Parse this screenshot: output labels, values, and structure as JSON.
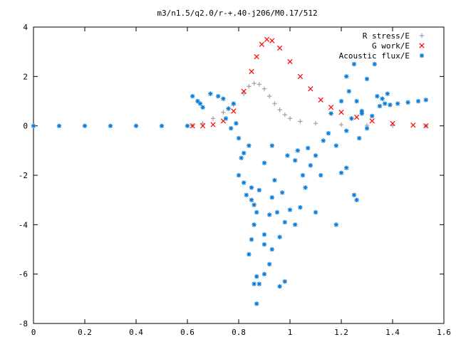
{
  "chart_data": {
    "type": "scatter",
    "title": "m3/n1.5/q2.0/r-+.40-j206/M0.17/512",
    "xlabel": "",
    "ylabel": "",
    "xlim": [
      0,
      1.6
    ],
    "ylim": [
      -8,
      4
    ],
    "x_ticks": [
      0,
      0.2,
      0.4,
      0.6,
      0.8,
      1,
      1.2,
      1.4,
      1.6
    ],
    "x_tick_labels": [
      "0",
      "0.2",
      "0.4",
      "0.6",
      "0.8",
      "1",
      "1.2",
      "1.4",
      "1.6"
    ],
    "y_ticks": [
      -8,
      -6,
      -4,
      -2,
      0,
      2,
      4
    ],
    "y_tick_labels": [
      "-8",
      "-6",
      "-4",
      "-2",
      "0",
      "2",
      "4"
    ],
    "grid": false,
    "legend_position": "top-right",
    "series": [
      {
        "name": "R stress/E",
        "marker": "plus",
        "color": "#a0a0a0",
        "points": [
          [
            0.62,
            0.01
          ],
          [
            0.66,
            0.1
          ],
          [
            0.7,
            0.3
          ],
          [
            0.74,
            0.55
          ],
          [
            0.78,
            0.85
          ],
          [
            0.82,
            1.3
          ],
          [
            0.84,
            1.6
          ],
          [
            0.86,
            1.72
          ],
          [
            0.88,
            1.68
          ],
          [
            0.9,
            1.5
          ],
          [
            0.92,
            1.2
          ],
          [
            0.94,
            0.9
          ],
          [
            0.96,
            0.65
          ],
          [
            0.98,
            0.45
          ],
          [
            1.0,
            0.3
          ],
          [
            1.04,
            0.18
          ],
          [
            1.1,
            0.1
          ],
          [
            1.2,
            0.05
          ],
          [
            1.3,
            0.02
          ],
          [
            1.4,
            0.01
          ],
          [
            1.53,
            0.0
          ]
        ]
      },
      {
        "name": "G work/E",
        "marker": "x",
        "color": "#ff0000",
        "points": [
          [
            0.62,
            0.0
          ],
          [
            0.66,
            0.0
          ],
          [
            0.7,
            0.05
          ],
          [
            0.74,
            0.2
          ],
          [
            0.78,
            0.6
          ],
          [
            0.82,
            1.4
          ],
          [
            0.85,
            2.2
          ],
          [
            0.87,
            2.8
          ],
          [
            0.89,
            3.3
          ],
          [
            0.91,
            3.5
          ],
          [
            0.93,
            3.45
          ],
          [
            0.96,
            3.15
          ],
          [
            1.0,
            2.6
          ],
          [
            1.04,
            2.0
          ],
          [
            1.08,
            1.5
          ],
          [
            1.12,
            1.05
          ],
          [
            1.16,
            0.75
          ],
          [
            1.2,
            0.55
          ],
          [
            1.26,
            0.35
          ],
          [
            1.32,
            0.2
          ],
          [
            1.4,
            0.1
          ],
          [
            1.48,
            0.03
          ],
          [
            1.53,
            0.0
          ]
        ]
      },
      {
        "name": "Acoustic flux/E",
        "marker": "star",
        "color": "#0a7ad7",
        "points": [
          [
            0.0,
            0
          ],
          [
            0.1,
            0
          ],
          [
            0.2,
            0
          ],
          [
            0.3,
            0
          ],
          [
            0.4,
            0
          ],
          [
            0.5,
            0
          ],
          [
            0.6,
            0
          ],
          [
            0.62,
            1.2
          ],
          [
            0.64,
            1.0
          ],
          [
            0.65,
            0.9
          ],
          [
            0.66,
            0.75
          ],
          [
            0.69,
            1.3
          ],
          [
            0.72,
            1.2
          ],
          [
            0.74,
            1.1
          ],
          [
            0.76,
            0.7
          ],
          [
            0.75,
            0.3
          ],
          [
            0.78,
            0.9
          ],
          [
            0.77,
            -0.1
          ],
          [
            0.79,
            0.1
          ],
          [
            0.8,
            -0.5
          ],
          [
            0.81,
            -1.3
          ],
          [
            0.8,
            -2.0
          ],
          [
            0.82,
            -2.3
          ],
          [
            0.83,
            -2.8
          ],
          [
            0.82,
            -1.1
          ],
          [
            0.84,
            -0.8
          ],
          [
            0.85,
            -2.5
          ],
          [
            0.86,
            -3.2
          ],
          [
            0.87,
            -3.5
          ],
          [
            0.88,
            -2.6
          ],
          [
            0.85,
            -4.6
          ],
          [
            0.86,
            -4.0
          ],
          [
            0.84,
            -5.2
          ],
          [
            0.87,
            -6.1
          ],
          [
            0.88,
            -6.4
          ],
          [
            0.86,
            -6.4
          ],
          [
            0.9,
            -6.0
          ],
          [
            0.92,
            -5.6
          ],
          [
            0.93,
            -5.0
          ],
          [
            0.9,
            -4.4
          ],
          [
            0.92,
            -3.6
          ],
          [
            0.93,
            -2.9
          ],
          [
            0.95,
            -3.5
          ],
          [
            0.96,
            -4.5
          ],
          [
            0.98,
            -3.9
          ],
          [
            0.97,
            -2.7
          ],
          [
            1.0,
            -3.4
          ],
          [
            1.02,
            -4.0
          ],
          [
            1.04,
            -3.3
          ],
          [
            1.06,
            -2.5
          ],
          [
            1.02,
            -1.4
          ],
          [
            1.05,
            -2.0
          ],
          [
            1.08,
            -1.6
          ],
          [
            1.1,
            -3.5
          ],
          [
            1.12,
            -2.0
          ],
          [
            1.1,
            -1.2
          ],
          [
            1.13,
            -0.6
          ],
          [
            1.15,
            -0.3
          ],
          [
            1.16,
            0.5
          ],
          [
            1.18,
            -0.8
          ],
          [
            1.2,
            -1.9
          ],
          [
            1.22,
            -1.7
          ],
          [
            1.25,
            -2.8
          ],
          [
            1.22,
            -0.2
          ],
          [
            1.24,
            0.3
          ],
          [
            1.27,
            -0.5
          ],
          [
            1.2,
            1.0
          ],
          [
            1.23,
            1.4
          ],
          [
            1.26,
            1.0
          ],
          [
            1.28,
            0.6
          ],
          [
            1.3,
            -0.1
          ],
          [
            1.32,
            0.4
          ],
          [
            1.34,
            1.2
          ],
          [
            1.35,
            0.8
          ],
          [
            1.36,
            1.1
          ],
          [
            1.38,
            1.3
          ],
          [
            1.22,
            2.0
          ],
          [
            1.25,
            2.5
          ],
          [
            1.3,
            1.9
          ],
          [
            1.33,
            2.5
          ],
          [
            1.28,
            0.5
          ],
          [
            1.37,
            0.9
          ],
          [
            1.39,
            0.85
          ],
          [
            1.42,
            0.9
          ],
          [
            1.46,
            0.95
          ],
          [
            1.5,
            1.0
          ],
          [
            1.53,
            1.05
          ],
          [
            0.85,
            -3.0
          ],
          [
            0.9,
            -4.8
          ],
          [
            0.94,
            -2.2
          ],
          [
            0.99,
            -1.2
          ],
          [
            1.03,
            -1.0
          ],
          [
            1.07,
            -0.9
          ],
          [
            1.18,
            -4.0
          ],
          [
            1.26,
            -3.0
          ],
          [
            0.87,
            -7.2
          ],
          [
            0.96,
            -6.5
          ],
          [
            0.98,
            -6.3
          ],
          [
            0.93,
            -0.8
          ],
          [
            0.9,
            -1.5
          ]
        ]
      }
    ]
  }
}
